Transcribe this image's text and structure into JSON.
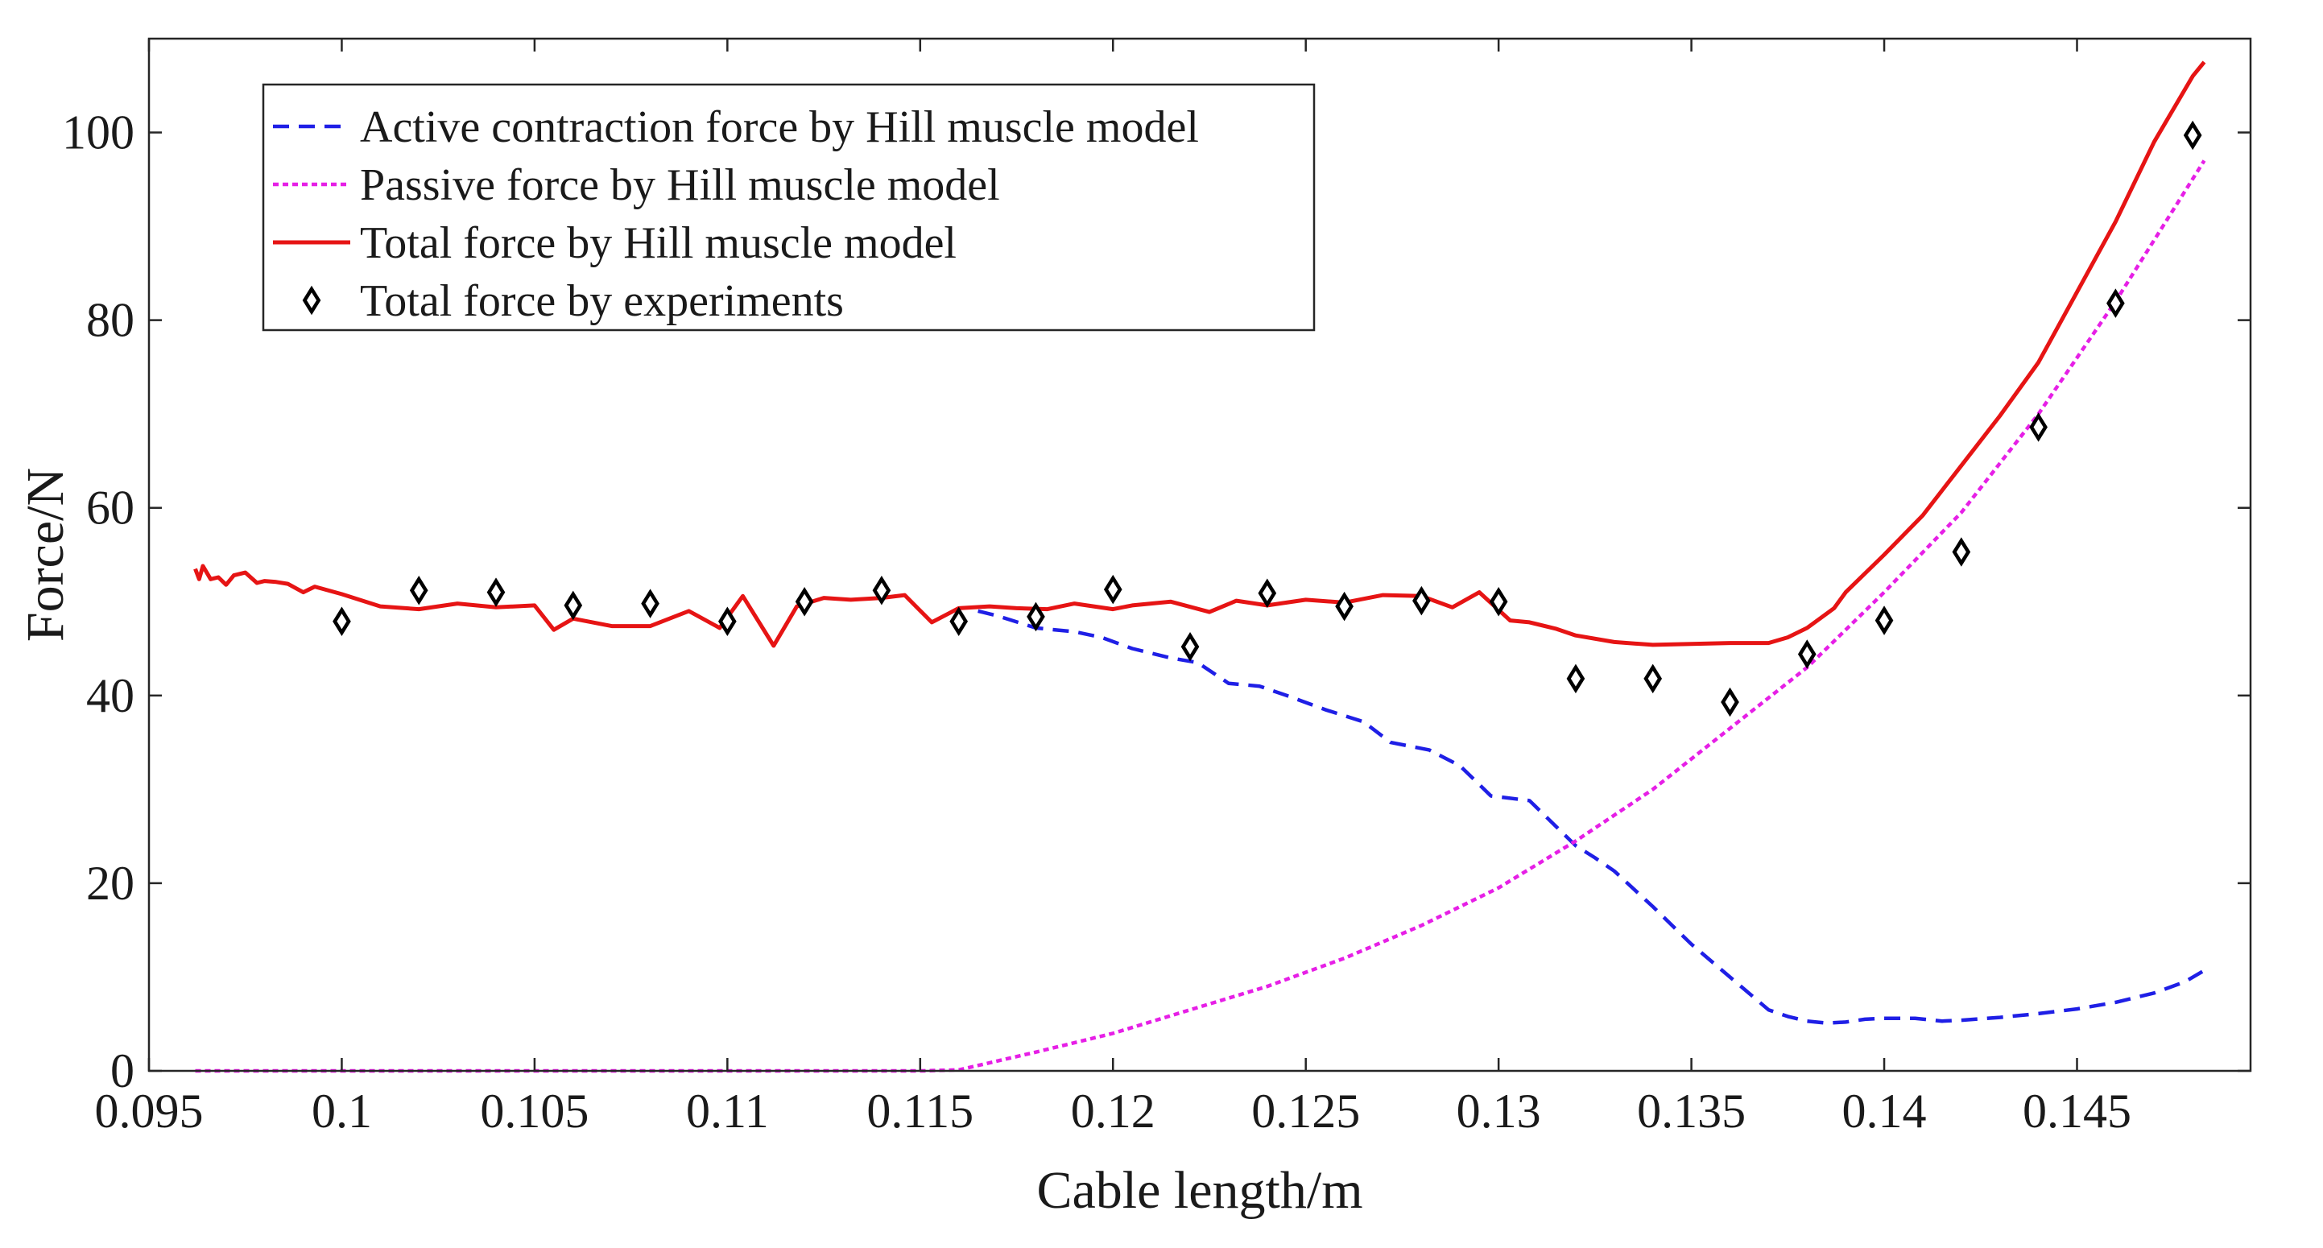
{
  "chart_data": {
    "type": "line",
    "title": "",
    "xlabel": "Cable length/m",
    "ylabel": "Force/N",
    "xlim": [
      0.095,
      0.1495
    ],
    "ylim": [
      0,
      110
    ],
    "xticks": [
      0.095,
      0.1,
      0.105,
      0.11,
      0.115,
      0.12,
      0.125,
      0.13,
      0.135,
      0.14,
      0.145
    ],
    "xtick_labels": [
      "0.095",
      "0.1",
      "0.105",
      "0.11",
      "0.115",
      "0.12",
      "0.125",
      "0.13",
      "0.135",
      "0.14",
      "0.145"
    ],
    "yticks": [
      0,
      20,
      40,
      60,
      80,
      100
    ],
    "ytick_labels": [
      "0",
      "20",
      "40",
      "60",
      "80",
      "100"
    ],
    "grid": false,
    "legend_position": "top-left",
    "series": [
      {
        "name": "Active contraction force by Hill muscle model",
        "style": "dashed",
        "color": "#1f1fe6",
        "x": [
          0.1165,
          0.117,
          0.118,
          0.119,
          0.1197,
          0.1205,
          0.1215,
          0.1222,
          0.123,
          0.1238,
          0.1245,
          0.1255,
          0.1265,
          0.1272,
          0.1282,
          0.129,
          0.1298,
          0.1308,
          0.1315,
          0.132,
          0.1325,
          0.133,
          0.134,
          0.135,
          0.136,
          0.137,
          0.1375,
          0.138,
          0.1385,
          0.139,
          0.1395,
          0.14,
          0.1408,
          0.1415,
          0.142,
          0.143,
          0.144,
          0.145,
          0.146,
          0.147,
          0.1478,
          0.1483
        ],
        "values": [
          49,
          48.5,
          47.2,
          46.8,
          46.2,
          45,
          44,
          43.5,
          41.3,
          41,
          40,
          38.5,
          37.2,
          35,
          34.2,
          32.5,
          29.3,
          28.8,
          26,
          24,
          22.7,
          21.3,
          17.5,
          13.5,
          10,
          6.5,
          5.8,
          5.3,
          5.1,
          5.2,
          5.5,
          5.6,
          5.6,
          5.3,
          5.4,
          5.7,
          6.1,
          6.6,
          7.3,
          8.3,
          9.5,
          10.7
        ]
      },
      {
        "name": "Passive force by Hill muscle model",
        "style": "dotted",
        "color": "#e61fe6",
        "x": [
          0.0962,
          0.1,
          0.105,
          0.11,
          0.115,
          0.116,
          0.118,
          0.12,
          0.122,
          0.124,
          0.126,
          0.128,
          0.13,
          0.132,
          0.134,
          0.136,
          0.138,
          0.14,
          0.142,
          0.144,
          0.146,
          0.1483
        ],
        "values": [
          0,
          0,
          0,
          0,
          0,
          0.1,
          2,
          4,
          6.5,
          9,
          12,
          15.5,
          19.5,
          24.5,
          30,
          36.5,
          43,
          51,
          59.5,
          70,
          82,
          97
        ]
      },
      {
        "name": "Total force by Hill muscle model",
        "style": "solid",
        "color": "#e61414",
        "x": [
          0.0962,
          0.0963,
          0.0964,
          0.0966,
          0.0968,
          0.097,
          0.0972,
          0.0975,
          0.0978,
          0.098,
          0.0983,
          0.0986,
          0.099,
          0.0993,
          0.1,
          0.101,
          0.102,
          0.103,
          0.104,
          0.105,
          0.1055,
          0.106,
          0.107,
          0.108,
          0.109,
          0.1098,
          0.1104,
          0.1112,
          0.1118,
          0.1125,
          0.1132,
          0.114,
          0.1146,
          0.1153,
          0.116,
          0.1168,
          0.1175,
          0.1183,
          0.119,
          0.12,
          0.1205,
          0.1215,
          0.1225,
          0.1232,
          0.124,
          0.125,
          0.126,
          0.127,
          0.128,
          0.1288,
          0.1295,
          0.1303,
          0.1308,
          0.1315,
          0.132,
          0.133,
          0.134,
          0.135,
          0.136,
          0.137,
          0.1375,
          0.138,
          0.1387,
          0.139,
          0.14,
          0.141,
          0.142,
          0.143,
          0.144,
          0.145,
          0.146,
          0.147,
          0.148,
          0.1483
        ],
        "values": [
          53.5,
          52.4,
          53.8,
          52.4,
          52.6,
          51.8,
          52.8,
          53.1,
          52,
          52.2,
          52.1,
          51.9,
          51,
          51.6,
          50.8,
          49.5,
          49.2,
          49.8,
          49.4,
          49.6,
          47,
          48.2,
          47.4,
          47.4,
          49,
          47.2,
          50.6,
          45.3,
          49.5,
          50.4,
          50.2,
          50.4,
          50.7,
          47.8,
          49.3,
          49.5,
          49.3,
          49.2,
          49.8,
          49.2,
          49.6,
          50,
          48.9,
          50.1,
          49.6,
          50.2,
          49.9,
          50.7,
          50.6,
          49.4,
          51,
          48,
          47.8,
          47.1,
          46.4,
          45.7,
          45.4,
          45.5,
          45.6,
          45.6,
          46.2,
          47.2,
          49.3,
          51,
          55,
          59.2,
          64.5,
          69.8,
          75.5,
          83,
          90.5,
          99,
          106,
          107.5
        ]
      },
      {
        "name": "Total force by experiments",
        "style": "markers",
        "color": "#000000",
        "marker": "diamond",
        "x": [
          0.1,
          0.102,
          0.104,
          0.106,
          0.108,
          0.11,
          0.112,
          0.114,
          0.116,
          0.118,
          0.12,
          0.122,
          0.124,
          0.126,
          0.128,
          0.13,
          0.132,
          0.134,
          0.136,
          0.138,
          0.14,
          0.142,
          0.144,
          0.146,
          0.148
        ],
        "values": [
          47.9,
          51.2,
          51,
          49.6,
          49.8,
          47.9,
          50,
          51.2,
          47.9,
          48.4,
          51.3,
          45.2,
          50.9,
          49.5,
          50.1,
          50,
          41.8,
          41.8,
          39.3,
          44.4,
          48,
          55.3,
          68.6,
          81.8,
          99.7
        ]
      }
    ]
  }
}
